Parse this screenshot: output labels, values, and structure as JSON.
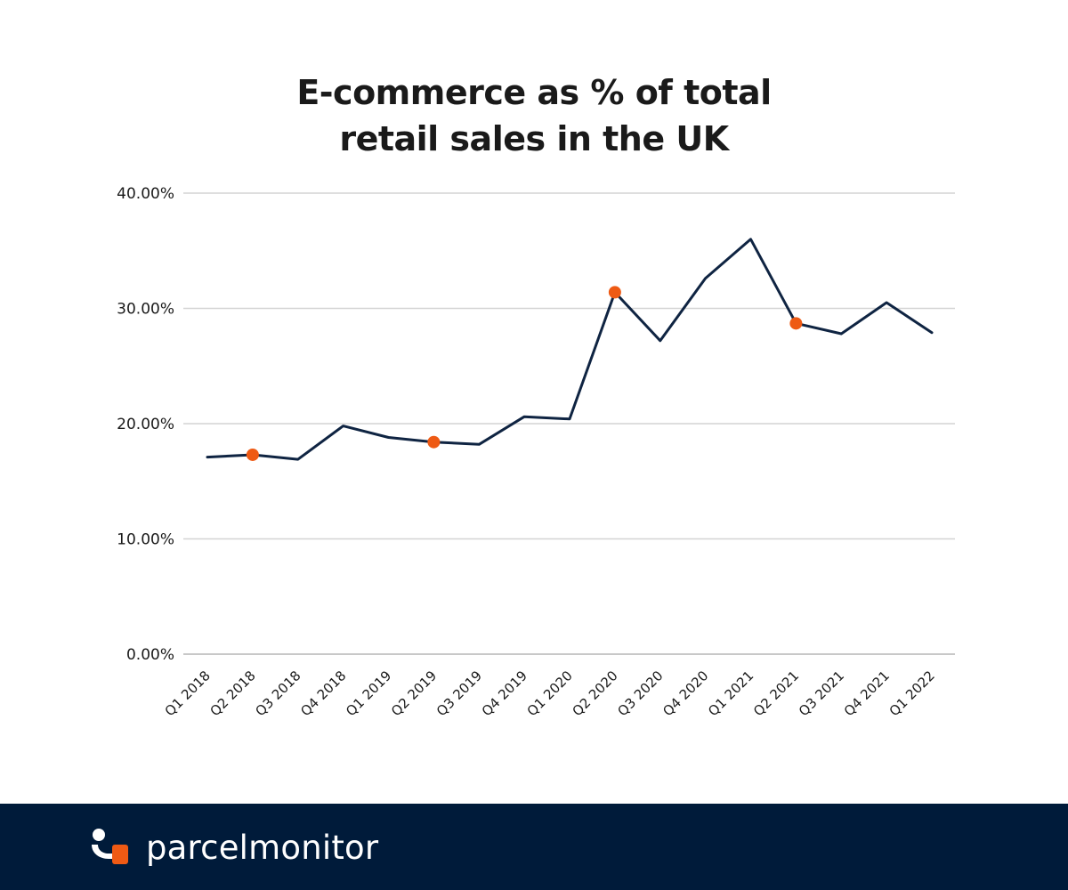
{
  "title_lines": [
    "E-commerce as % of total",
    "retail sales in the UK"
  ],
  "brand": {
    "name": "parcelmonitor"
  },
  "colors": {
    "line": "#0f2442",
    "highlight": "#ee5a14",
    "grid": "#d4d4d4",
    "footer_bg": "#001b3a",
    "text": "#1a1a1a"
  },
  "chart_data": {
    "type": "line",
    "title": "E-commerce as % of total retail sales in the UK",
    "xlabel": "",
    "ylabel": "",
    "ylim": [
      0,
      40
    ],
    "yticks": [
      0,
      10,
      20,
      30,
      40
    ],
    "ytick_labels": [
      "0.00%",
      "10.00%",
      "20.00%",
      "30.00%",
      "40.00%"
    ],
    "grid": true,
    "categories": [
      "Q1 2018",
      "Q2 2018",
      "Q3 2018",
      "Q4 2018",
      "Q1 2019",
      "Q2 2019",
      "Q3 2019",
      "Q4 2019",
      "Q1 2020",
      "Q2 2020",
      "Q3 2020",
      "Q4 2020",
      "Q1 2021",
      "Q2 2021",
      "Q3 2021",
      "Q4 2021",
      "Q1 2022"
    ],
    "series": [
      {
        "values": [
          17.1,
          17.3,
          16.9,
          19.8,
          18.8,
          18.4,
          18.2,
          20.6,
          20.4,
          31.4,
          27.2,
          32.6,
          36.0,
          28.7,
          27.8,
          30.5,
          27.9
        ]
      }
    ],
    "highlighted_categories": [
      "Q2 2018",
      "Q2 2019",
      "Q2 2020",
      "Q2 2021"
    ]
  }
}
